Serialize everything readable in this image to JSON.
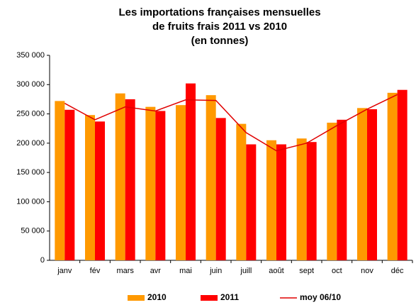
{
  "chart_data": {
    "type": "bar",
    "title": [
      "Les importations françaises mensuelles",
      "de fruits frais 2011 vs 2010",
      "(en tonnes)"
    ],
    "categories": [
      "janv",
      "fév",
      "mars",
      "avr",
      "mai",
      "juin",
      "juill",
      "août",
      "sept",
      "oct",
      "nov",
      "déc"
    ],
    "series": [
      {
        "name": "2010",
        "color": "#ff9900",
        "values": [
          272000,
          248000,
          285000,
          262000,
          265000,
          282000,
          233000,
          205000,
          208000,
          235000,
          260000,
          286000
        ]
      },
      {
        "name": "2011",
        "color": "#ff0000",
        "values": [
          257000,
          237000,
          275000,
          255000,
          302000,
          243000,
          198000,
          198000,
          202000,
          240000,
          258000,
          291000
        ]
      },
      {
        "name": "moy 06/10",
        "type": "line",
        "color": "#e00000",
        "values": [
          268000,
          240000,
          262000,
          255000,
          274000,
          273000,
          218000,
          187000,
          200000,
          230000,
          258000,
          283000
        ]
      }
    ],
    "ylim": [
      0,
      350000
    ],
    "yticks": [
      {
        "value": 0,
        "label": "0"
      },
      {
        "value": 50000,
        "label": "50 000"
      },
      {
        "value": 100000,
        "label": "100 000"
      },
      {
        "value": 150000,
        "label": "150 000"
      },
      {
        "value": 200000,
        "label": "200 000"
      },
      {
        "value": 250000,
        "label": "250 000"
      },
      {
        "value": 300000,
        "label": "300 000"
      },
      {
        "value": 350000,
        "label": "350 000"
      }
    ],
    "grid": false,
    "legend": "bottom"
  }
}
